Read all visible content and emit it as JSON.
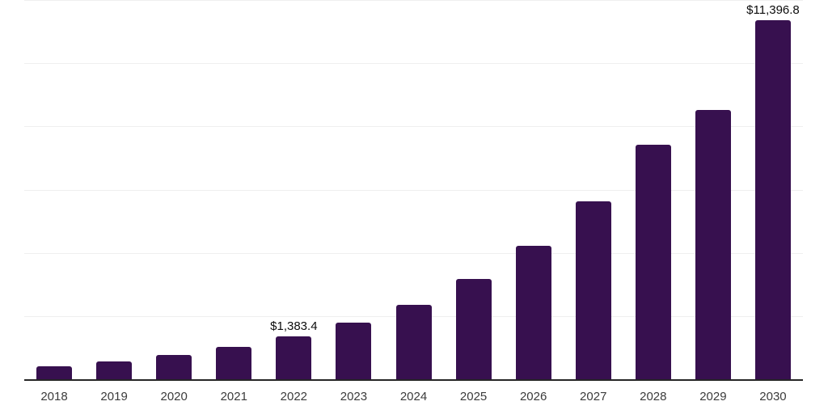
{
  "chart_data": {
    "type": "bar",
    "title": "",
    "xlabel": "",
    "ylabel": "",
    "categories": [
      "2018",
      "2019",
      "2020",
      "2021",
      "2022",
      "2023",
      "2024",
      "2025",
      "2026",
      "2027",
      "2028",
      "2029",
      "2030"
    ],
    "values": [
      445,
      595,
      800,
      1050,
      1383.4,
      1805,
      2385,
      3200,
      4240,
      5645,
      7455,
      8535,
      11396.8
    ],
    "data_labels": {
      "2022": "$1,383.4",
      "2030": "$11,396.8"
    },
    "ylim": [
      0,
      12000
    ],
    "gridline_step": 2000,
    "grid": true,
    "legend": false,
    "y_axis_labels_visible": false,
    "colors": {
      "bar": "#37104f",
      "axis": "#262626",
      "gridline": "#efefef",
      "tick_label": "#3b3b3b",
      "data_label": "#0c0c0c",
      "background": "#ffffff"
    }
  }
}
